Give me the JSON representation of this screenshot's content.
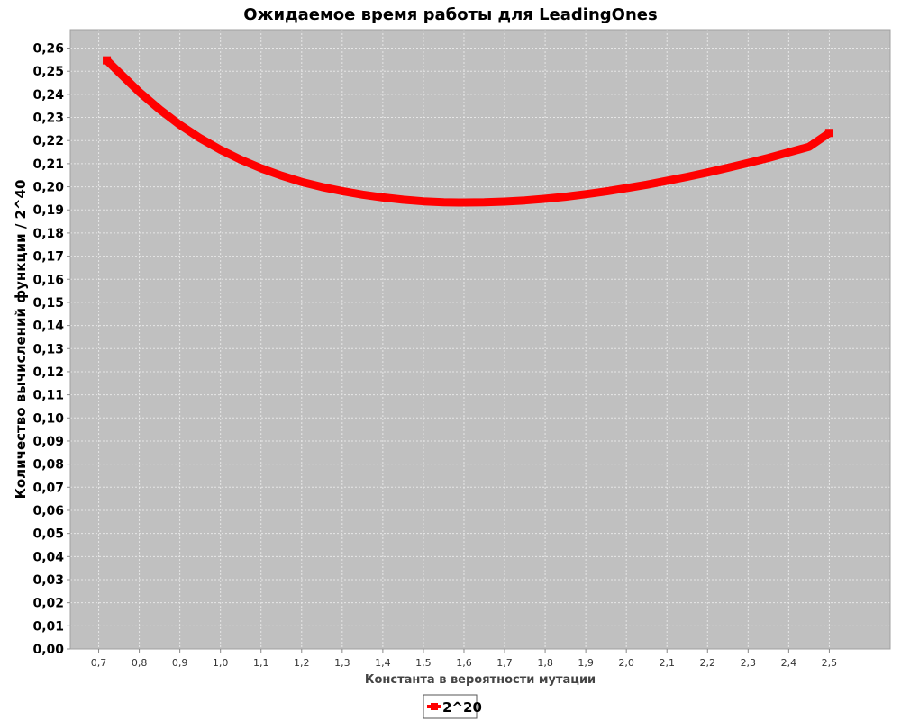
{
  "chart_data": {
    "type": "line",
    "title": "Ожидаемое время работы для LeadingOnes",
    "xlabel": "Константа в вероятности мутации",
    "ylabel": "Количество вычислений функции / 2^40",
    "xlim": [
      0.63,
      2.65
    ],
    "ylim": [
      0.0,
      0.268
    ],
    "x_ticks": [
      "0,7",
      "0,8",
      "0,9",
      "1,0",
      "1,1",
      "1,2",
      "1,3",
      "1,4",
      "1,5",
      "1,6",
      "1,7",
      "1,8",
      "1,9",
      "2,0",
      "2,1",
      "2,2",
      "2,3",
      "2,4",
      "2,5"
    ],
    "y_ticks": [
      "0,00",
      "0,01",
      "0,02",
      "0,03",
      "0,04",
      "0,05",
      "0,06",
      "0,07",
      "0,08",
      "0,09",
      "0,10",
      "0,11",
      "0,12",
      "0,13",
      "0,14",
      "0,15",
      "0,16",
      "0,17",
      "0,18",
      "0,19",
      "0,20",
      "0,21",
      "0,22",
      "0,23",
      "0,24",
      "0,25",
      "0,26"
    ],
    "grid": true,
    "legend_position": "bottom-center",
    "colors": {
      "plot_background": "#c0c0c0",
      "grid": "#e6e6e6",
      "series": "#ff0000"
    },
    "series": [
      {
        "name": "2^20",
        "x": [
          0.72,
          0.75,
          0.8,
          0.85,
          0.9,
          0.95,
          1.0,
          1.05,
          1.1,
          1.15,
          1.2,
          1.25,
          1.3,
          1.35,
          1.4,
          1.45,
          1.5,
          1.55,
          1.6,
          1.65,
          1.7,
          1.75,
          1.8,
          1.85,
          1.9,
          1.95,
          2.0,
          2.05,
          2.1,
          2.15,
          2.2,
          2.25,
          2.3,
          2.35,
          2.4,
          2.45,
          2.5
        ],
        "y": [
          0.2547,
          0.2495,
          0.241,
          0.2335,
          0.2268,
          0.221,
          0.216,
          0.2117,
          0.208,
          0.2048,
          0.2021,
          0.1999,
          0.1981,
          0.1966,
          0.1954,
          0.1944,
          0.1937,
          0.1933,
          0.1932,
          0.1933,
          0.1936,
          0.1941,
          0.1948,
          0.1957,
          0.1968,
          0.198,
          0.1994,
          0.2009,
          0.2026,
          0.2043,
          0.2062,
          0.2082,
          0.2103,
          0.2125,
          0.2149,
          0.2173,
          0.2233
        ]
      }
    ]
  }
}
